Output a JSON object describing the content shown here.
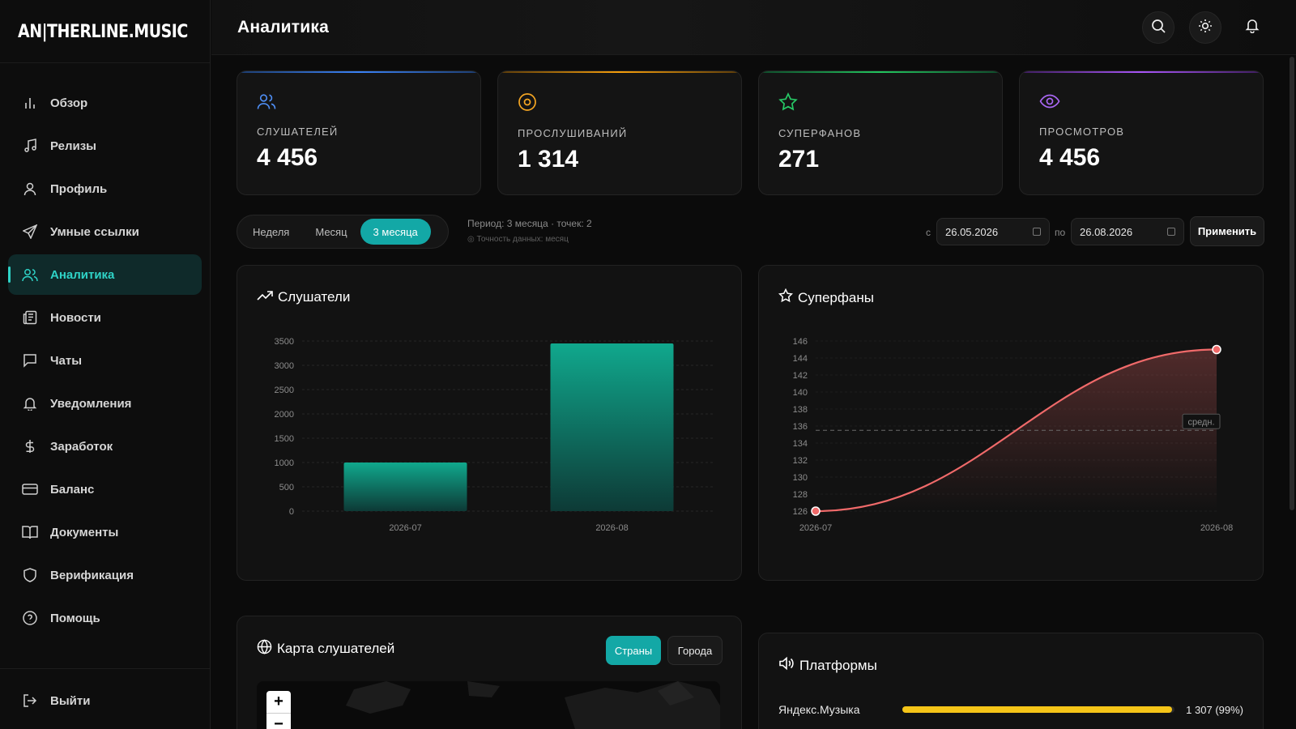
{
  "brand": {
    "logo_text": "AN|THERLINE.MUSIC"
  },
  "header": {
    "title": "Аналитика"
  },
  "sidebar": {
    "items": [
      {
        "label": "Обзор"
      },
      {
        "label": "Релизы"
      },
      {
        "label": "Профиль"
      },
      {
        "label": "Умные ссылки"
      },
      {
        "label": "Аналитика"
      },
      {
        "label": "Новости"
      },
      {
        "label": "Чаты"
      },
      {
        "label": "Уведомления"
      },
      {
        "label": "Заработок"
      },
      {
        "label": "Баланс"
      },
      {
        "label": "Документы"
      },
      {
        "label": "Верификация"
      },
      {
        "label": "Помощь"
      }
    ],
    "logout": "Выйти"
  },
  "stats": [
    {
      "label": "СЛУШАТЕЛЕЙ",
      "value": "4 456",
      "color": "#3b82f6",
      "icon": "users-icon"
    },
    {
      "label": "ПРОСЛУШИВАНИЙ",
      "value": "1 314",
      "color": "#f59e0b",
      "icon": "disc-icon"
    },
    {
      "label": "СУПЕРФАНОВ",
      "value": "271",
      "color": "#22c55e",
      "icon": "star-icon"
    },
    {
      "label": "ПРОСМОТРОВ",
      "value": "4 456",
      "color": "#a855f7",
      "icon": "eye-icon"
    }
  ],
  "period": {
    "options": [
      "Неделя",
      "Месяц",
      "3 месяца"
    ],
    "active": "3 месяца",
    "info": "Период: 3 месяца · точек: 2",
    "accuracy": "Точность данных: месяц",
    "from_label": "с",
    "to_label": "по",
    "from": "26.05.2026",
    "to": "26.08.2026",
    "apply": "Применить"
  },
  "listeners_panel": {
    "title": "Слушатели"
  },
  "superfans_panel": {
    "title": "Суперфаны",
    "avg_label": "средн."
  },
  "map_panel": {
    "title": "Карта слушателей",
    "tab_countries": "Страны",
    "tab_cities": "Города",
    "zoom_in": "+",
    "zoom_out": "−"
  },
  "platforms_panel": {
    "title": "Платформы",
    "rows": [
      {
        "name": "Яндекс.Музыка",
        "value": "1 307 (99%)",
        "fraction": 0.99
      }
    ]
  },
  "colors": {
    "accent": "#13a8a6",
    "line": "#f06a6a",
    "bar": "#0fa58c"
  },
  "chart_data": [
    {
      "type": "bar",
      "title": "Слушатели",
      "categories": [
        "2026-07",
        "2026-08"
      ],
      "values": [
        1000,
        3450
      ],
      "ylim": [
        0,
        3500
      ],
      "yticks": [
        0,
        500,
        1000,
        1500,
        2000,
        2500,
        3000,
        3500
      ],
      "grid": true
    },
    {
      "type": "line",
      "title": "Суперфаны",
      "x": [
        "2026-07",
        "2026-08"
      ],
      "values": [
        126,
        145
      ],
      "ylim": [
        126,
        146
      ],
      "yticks": [
        126,
        128,
        130,
        132,
        134,
        136,
        138,
        140,
        142,
        144,
        146
      ],
      "average": 135.5,
      "grid": true
    }
  ]
}
